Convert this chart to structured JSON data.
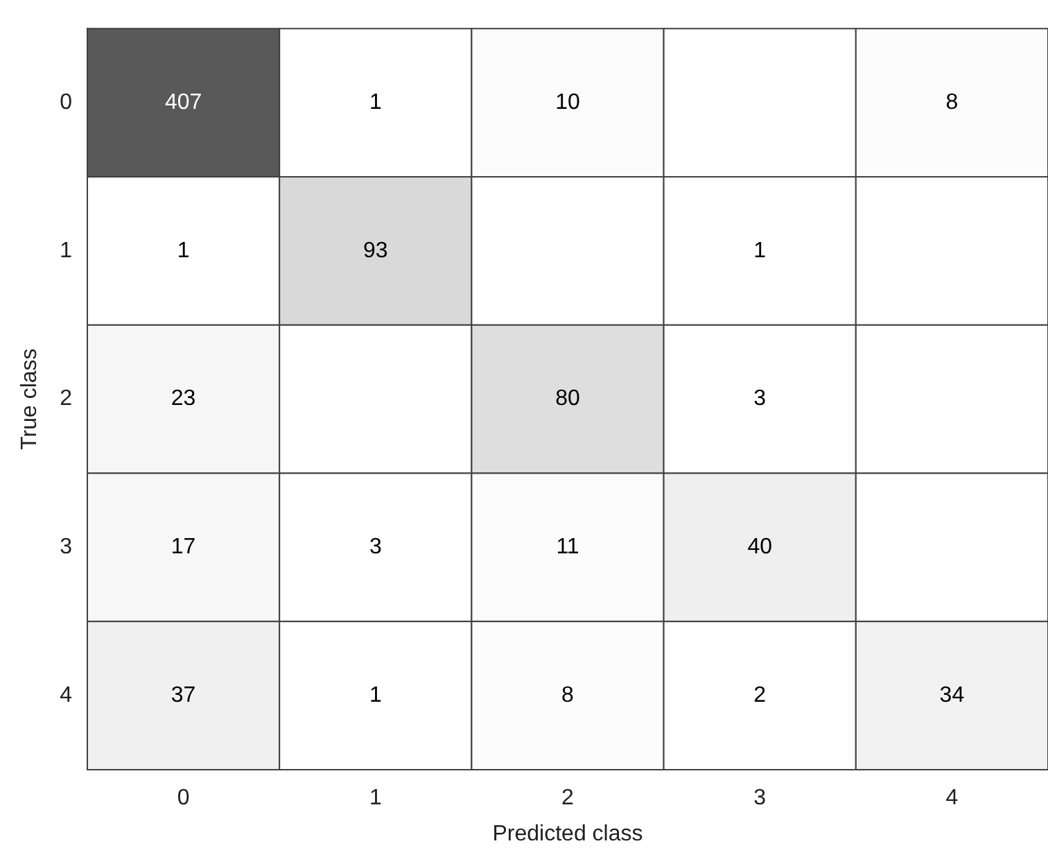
{
  "chart_data": {
    "type": "heatmap",
    "xlabel": "Predicted class",
    "ylabel": "True class",
    "categories": [
      "0",
      "1",
      "2",
      "3",
      "4"
    ],
    "y_categories": [
      "0",
      "1",
      "2",
      "3",
      "4"
    ],
    "cells": [
      [
        407,
        1,
        10,
        null,
        8
      ],
      [
        1,
        93,
        null,
        1,
        null
      ],
      [
        23,
        null,
        80,
        3,
        null
      ],
      [
        17,
        3,
        11,
        40,
        null
      ],
      [
        37,
        1,
        8,
        2,
        34
      ]
    ],
    "color": "#595959",
    "data_labels": true,
    "grid": false
  }
}
